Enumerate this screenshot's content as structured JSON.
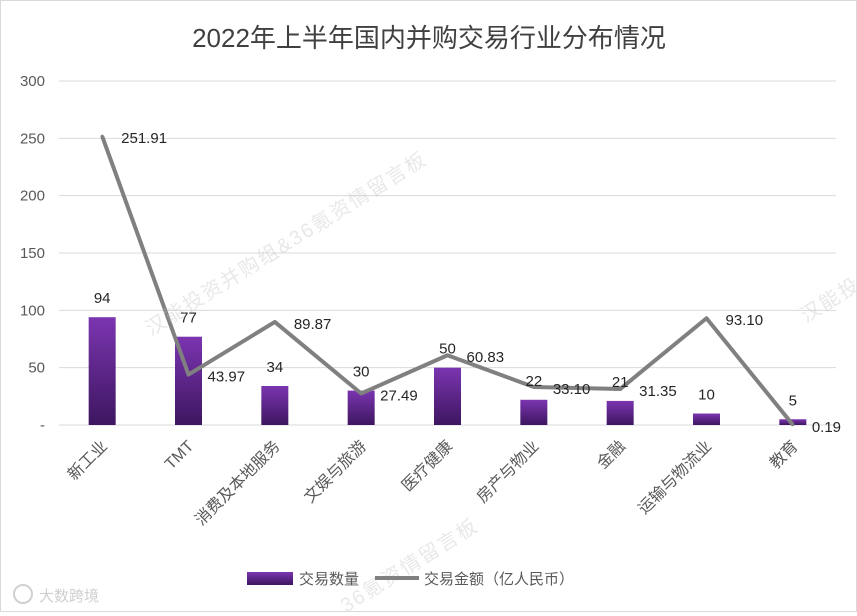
{
  "chart_data": {
    "type": "bar",
    "title": "2022年上半年国内并购交易行业分布情况",
    "categories": [
      "新工业",
      "TMT",
      "消费及本地服务",
      "文娱与旅游",
      "医疗健康",
      "房产与物业",
      "金融",
      "运输与物流业",
      "教育"
    ],
    "series": [
      {
        "name": "交易数量",
        "type": "bar",
        "values": [
          94,
          77,
          34,
          30,
          50,
          22,
          21,
          10,
          5
        ],
        "labels": [
          "94",
          "77",
          "34",
          "30",
          "50",
          "22",
          "21",
          "10",
          "5"
        ],
        "color": "#7030a0"
      },
      {
        "name": "交易金额（亿人民币）",
        "type": "line",
        "values": [
          251.91,
          43.97,
          89.87,
          27.49,
          60.83,
          33.1,
          31.35,
          93.1,
          0.19
        ],
        "labels": [
          "251.91",
          "43.97",
          "89.87",
          "27.49",
          "60.83",
          "33.10",
          "31.35",
          "93.10",
          "0.19"
        ],
        "color": "#808080"
      }
    ],
    "ylim": [
      0,
      300
    ],
    "yticks": [
      0,
      50,
      100,
      150,
      200,
      250,
      300
    ],
    "ytick_labels": [
      "-",
      "50",
      "100",
      "150",
      "200",
      "250",
      "300"
    ],
    "grid": true,
    "legend": "bottom"
  },
  "watermarks": [
    "汉能投资并购组&36氪资情留言板",
    "汉能投",
    "36氪资情留言板"
  ],
  "logo_text": "大数跨境"
}
